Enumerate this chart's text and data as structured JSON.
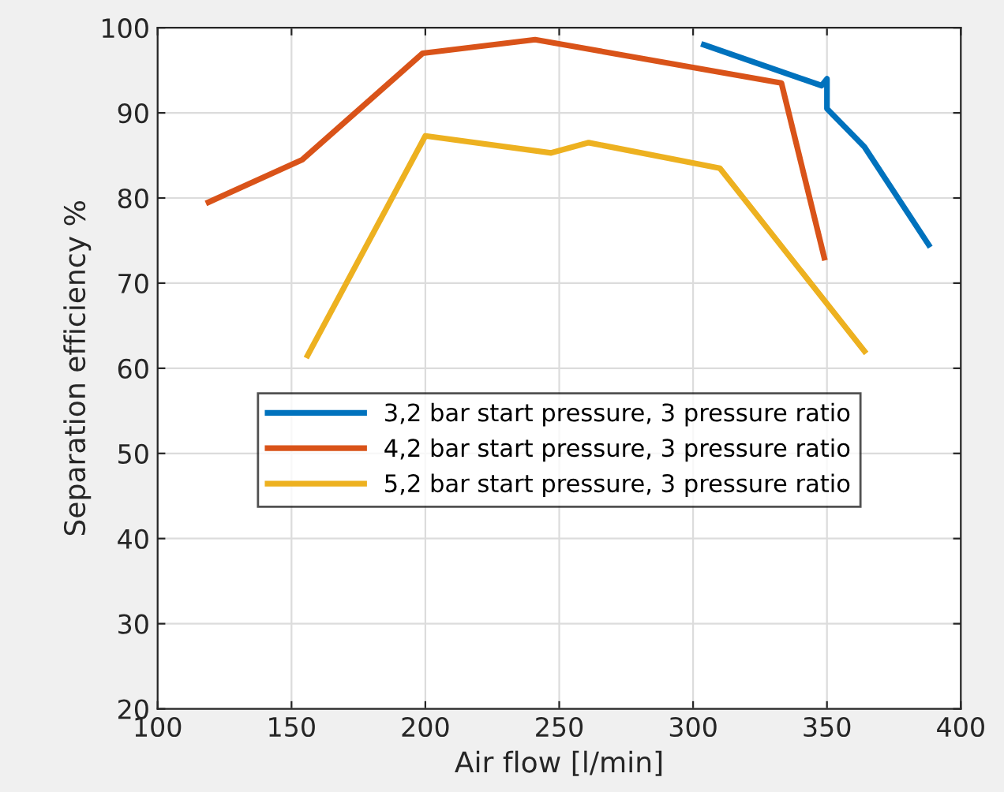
{
  "chart_data": {
    "type": "line",
    "xlabel": "Air flow [l/min]",
    "ylabel": "Separation efficiency %",
    "xlim": [
      100,
      400
    ],
    "ylim": [
      20,
      100
    ],
    "xticks": [
      100,
      150,
      200,
      250,
      300,
      350,
      400
    ],
    "yticks": [
      20,
      30,
      40,
      50,
      60,
      70,
      80,
      90,
      100
    ],
    "grid": true,
    "legend": "center",
    "marker": "none",
    "line_style": "solid",
    "series": [
      {
        "name": "3,2 bar start pressure, 3 pressure ratio",
        "color": "#0072bd",
        "x": [
          304,
          348,
          350,
          350,
          364,
          388
        ],
        "values": [
          98,
          93.2,
          94,
          90.5,
          86,
          74.5
        ]
      },
      {
        "name": "4,2 bar start pressure, 3 pressure ratio",
        "color": "#d95319",
        "x": [
          119,
          154,
          199,
          241,
          333,
          349
        ],
        "values": [
          79.5,
          84.5,
          97,
          98.6,
          93.5,
          73
        ]
      },
      {
        "name": "5,2 bar start pressure, 3 pressure ratio",
        "color": "#edb120",
        "x": [
          156,
          200,
          247,
          261,
          310,
          364
        ],
        "values": [
          61.5,
          87.3,
          85.3,
          86.5,
          83.5,
          62
        ]
      }
    ]
  }
}
